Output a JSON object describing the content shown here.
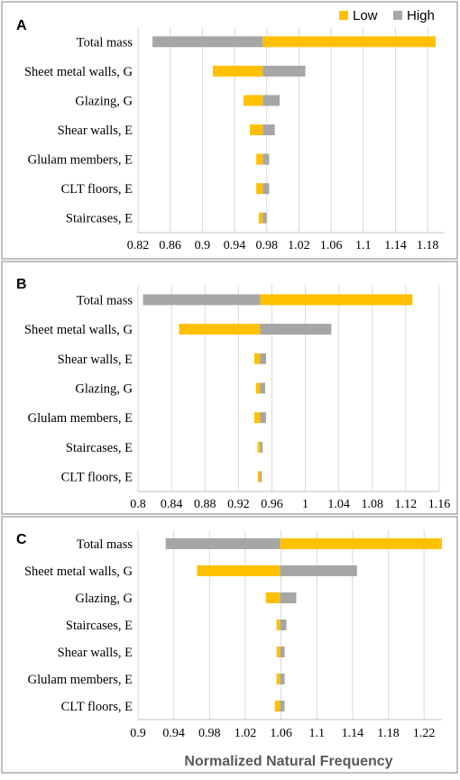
{
  "colors": {
    "low": "#FFC000",
    "high": "#A6A6A6",
    "grid": "#D9D9D9",
    "border": "#808080"
  },
  "legend": {
    "low": "Low",
    "high": "High"
  },
  "xlabel": "Normalized Natural Frequency",
  "chart_data": [
    {
      "type": "bar",
      "orientation": "horizontal",
      "panel": "A",
      "baseline": 0.975,
      "xlim": [
        0.82,
        1.2
      ],
      "ticks": [
        "0.82",
        "0.86",
        "0.9",
        "0.94",
        "0.98",
        "1.02",
        "1.06",
        "1.1",
        "1.14",
        "1.18"
      ],
      "categories": [
        "Total mass",
        "Sheet metal walls, G",
        "Glazing, G",
        "Shear walls, E",
        "Glulam members, E",
        "CLT floors, E",
        "Staircases, E"
      ],
      "series": [
        {
          "name": "Low",
          "values": [
            1.19,
            0.913,
            0.951,
            0.959,
            0.967,
            0.967,
            0.97
          ]
        },
        {
          "name": "High",
          "values": [
            0.838,
            1.028,
            0.996,
            0.99,
            0.983,
            0.983,
            0.98
          ]
        }
      ],
      "legend_position": "top-right",
      "grid": true
    },
    {
      "type": "bar",
      "orientation": "horizontal",
      "panel": "B",
      "baseline": 0.946,
      "xlim": [
        0.8,
        1.16
      ],
      "ticks": [
        "0.8",
        "0.84",
        "0.88",
        "0.92",
        "0.96",
        "1",
        "1.04",
        "1.08",
        "1.12",
        "1.16"
      ],
      "categories": [
        "Total mass",
        "Sheet metal walls, G",
        "Shear walls, E",
        "Glazing, G",
        "Glulam members, E",
        "Staircases, E",
        "CLT floors, E"
      ],
      "series": [
        {
          "name": "Low",
          "values": [
            1.128,
            0.849,
            0.939,
            0.941,
            0.939,
            0.943,
            0.943
          ]
        },
        {
          "name": "High",
          "values": [
            0.806,
            1.031,
            0.953,
            0.952,
            0.953,
            0.949,
            0.948
          ]
        }
      ],
      "grid": true
    },
    {
      "type": "bar",
      "orientation": "horizontal",
      "panel": "C",
      "baseline": 1.059,
      "xlim": [
        0.9,
        1.24
      ],
      "ticks": [
        "0.9",
        "0.94",
        "0.98",
        "1.02",
        "1.06",
        "1.1",
        "1.14",
        "1.18",
        "1.22"
      ],
      "categories": [
        "Total mass",
        "Sheet metal walls, G",
        "Glazing, G",
        "Staircases, E",
        "Shear walls, E",
        "Glulam members, E",
        "CLT floors, E"
      ],
      "series": [
        {
          "name": "Low",
          "values": [
            1.24,
            0.966,
            1.043,
            1.055,
            1.055,
            1.055,
            1.053
          ]
        },
        {
          "name": "High",
          "values": [
            0.931,
            1.145,
            1.077,
            1.066,
            1.064,
            1.064,
            1.064
          ]
        }
      ],
      "grid": true
    }
  ]
}
